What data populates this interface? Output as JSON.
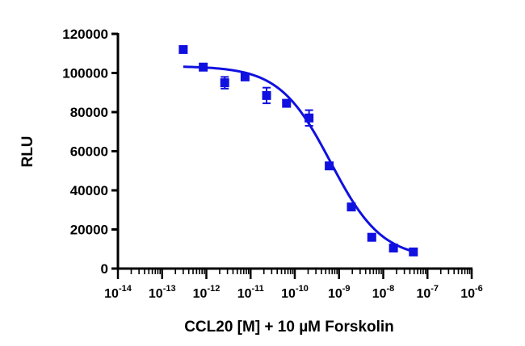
{
  "chart_data": {
    "type": "scatter",
    "xlabel": "CCL20 [M] + 10 µM Forskolin",
    "ylabel": "RLU",
    "x_scale": "log",
    "xlim": [
      1e-14,
      1e-06
    ],
    "ylim": [
      0,
      120000
    ],
    "x_ticks": [
      {
        "base": "10",
        "exp": "-14",
        "value": 1e-14
      },
      {
        "base": "10",
        "exp": "-13",
        "value": 1e-13
      },
      {
        "base": "10",
        "exp": "-12",
        "value": 1e-12
      },
      {
        "base": "10",
        "exp": "-11",
        "value": 1e-11
      },
      {
        "base": "10",
        "exp": "-10",
        "value": 1e-10
      },
      {
        "base": "10",
        "exp": "-9",
        "value": 1e-09
      },
      {
        "base": "10",
        "exp": "-8",
        "value": 1e-08
      },
      {
        "base": "10",
        "exp": "-7",
        "value": 1e-07
      },
      {
        "base": "10",
        "exp": "-6",
        "value": 1e-06
      }
    ],
    "y_ticks": [
      {
        "label": "0",
        "value": 0
      },
      {
        "label": "20000",
        "value": 20000
      },
      {
        "label": "40000",
        "value": 40000
      },
      {
        "label": "60000",
        "value": 60000
      },
      {
        "label": "80000",
        "value": 80000
      },
      {
        "label": "100000",
        "value": 100000
      },
      {
        "label": "120000",
        "value": 120000
      }
    ],
    "grid": false,
    "legend": "none",
    "color": "#1010e0",
    "points": [
      {
        "x": 3e-13,
        "y": 112000,
        "err": 1000
      },
      {
        "x": 8.5e-13,
        "y": 103000,
        "err": 1000
      },
      {
        "x": 2.6e-12,
        "y": 95000,
        "err": 3000
      },
      {
        "x": 7.5e-12,
        "y": 98000,
        "err": 1000
      },
      {
        "x": 2.3e-11,
        "y": 88500,
        "err": 4000
      },
      {
        "x": 6.5e-11,
        "y": 84500,
        "err": 1000
      },
      {
        "x": 2.1e-10,
        "y": 77000,
        "err": 4000
      },
      {
        "x": 6e-10,
        "y": 52500,
        "err": 1000
      },
      {
        "x": 1.9e-09,
        "y": 31500,
        "err": 1000
      },
      {
        "x": 5.5e-09,
        "y": 16000,
        "err": 1000
      },
      {
        "x": 1.7e-08,
        "y": 10500,
        "err": 800
      },
      {
        "x": 4.8e-08,
        "y": 8500,
        "err": 800
      }
    ],
    "fit": {
      "model": "four-parameter logistic",
      "top": 103500,
      "bottom": 5000,
      "ec50": 6.5e-10,
      "hill": 0.75,
      "x_range": [
        3e-13,
        4.8e-08
      ]
    }
  }
}
